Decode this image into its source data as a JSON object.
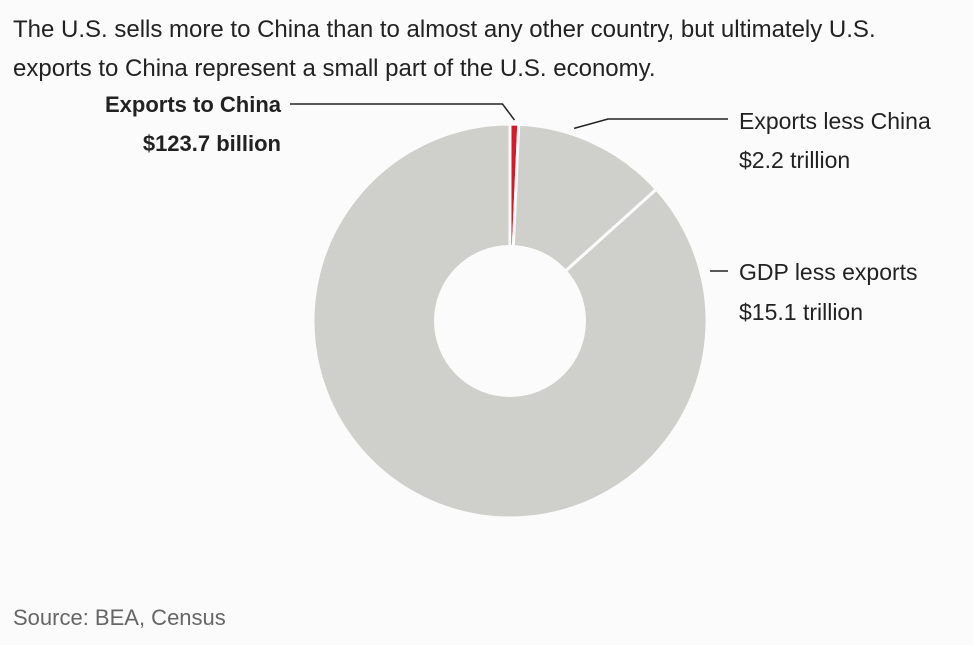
{
  "subtitle": "The U.S. sells more to China than to almost any other country, but ultimately U.S. exports to China represent a small part of the U.S. economy.",
  "source": "Source: BEA, Census",
  "chart_data": {
    "type": "pie",
    "subtitle": "The U.S. sells more to China than to almost any other country, but ultimately U.S. exports to China represent a small part of the U.S. economy.",
    "unit": "billion USD",
    "slices": [
      {
        "name": "Exports to China",
        "value": 123.7,
        "value_label": "$123.7 billion",
        "color": "#d7192a",
        "highlight": true
      },
      {
        "name": "Exports less China",
        "value": 2200,
        "value_label": "$2.2 trillion",
        "color": "#cfcfcb"
      },
      {
        "name": "GDP less exports",
        "value": 15100,
        "value_label": "$15.1 trillion",
        "color": "#cfcfcb"
      }
    ],
    "donut": true,
    "start": "12 o'clock",
    "direction": "clockwise",
    "legend": "none"
  }
}
